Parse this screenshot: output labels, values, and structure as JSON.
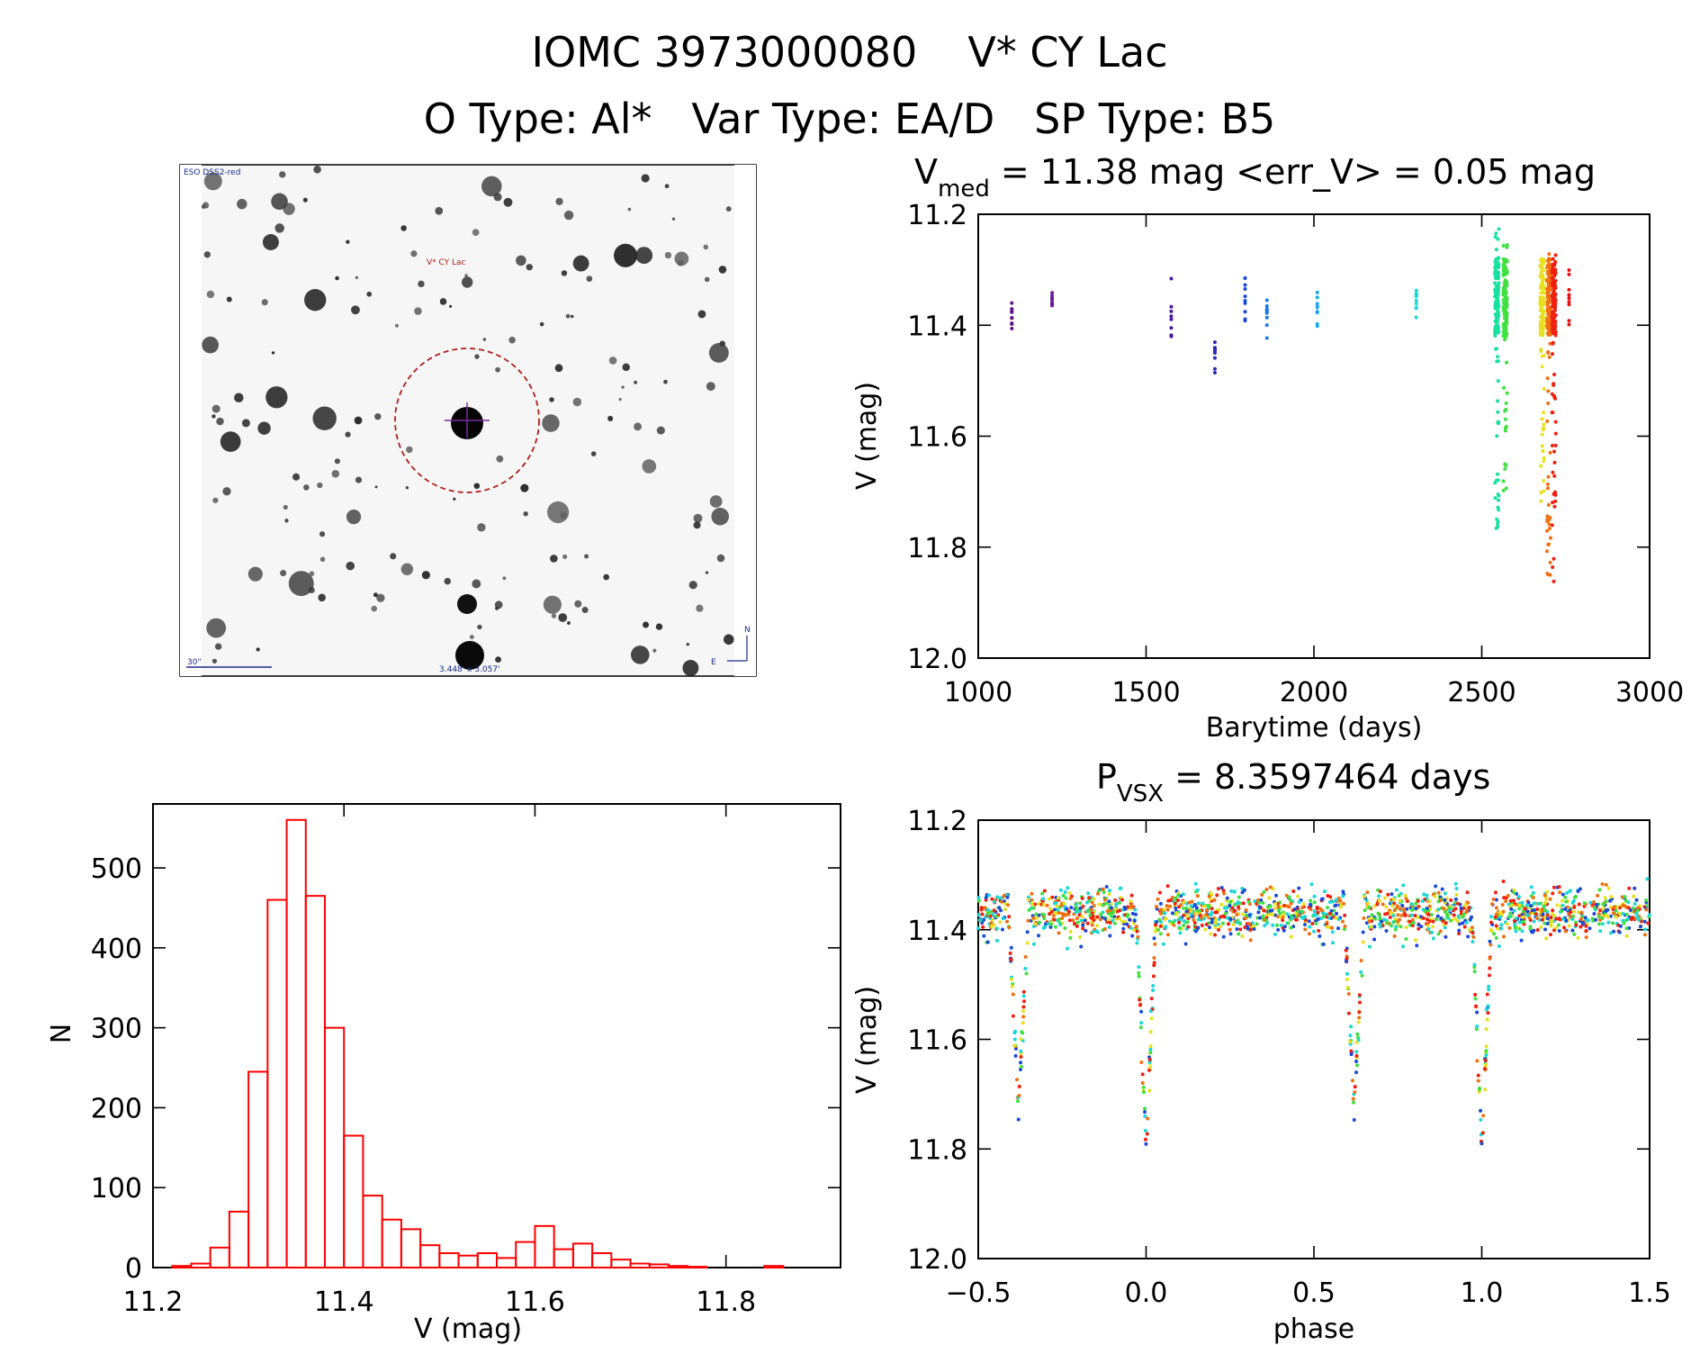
{
  "header": {
    "line1_id": "IOMC 3973000080",
    "line1_name": "V* CY Lac",
    "line2": "O Type: Al*   Var Type: EA/D   SP Type: B5"
  },
  "finder": {
    "survey_label": "ESO DSS2-red",
    "target_label": "V* CY Lac",
    "scale_label": "30\"",
    "fov_label": "3.448' x 3.057'",
    "north_label": "N",
    "east_label": "E"
  },
  "chart_data": [
    {
      "type": "scatter",
      "id": "light_curve",
      "title": "V_med = 11.38 mag <err_V> = 0.05 mag",
      "title_parts": {
        "v": "V",
        "sub": "med",
        "rest": " = 11.38 mag <err_V> = 0.05 mag"
      },
      "xlabel": "Barytime (days)",
      "ylabel": "V (mag)",
      "xlim": [
        1000,
        3000
      ],
      "ylim": [
        12.0,
        11.2
      ],
      "xticks": [
        1000,
        1500,
        2000,
        2500,
        3000
      ],
      "yticks": [
        11.2,
        11.4,
        11.6,
        11.8,
        12.0
      ],
      "groups": [
        {
          "t": 1100,
          "v": [
            11.36,
            11.38,
            11.4,
            11.41
          ],
          "color": "#5a1488"
        },
        {
          "t": 1220,
          "v": [
            11.34,
            11.35,
            11.36,
            11.37
          ],
          "color": "#6a1a9a"
        },
        {
          "t": 1575,
          "v": [
            11.3,
            11.33,
            11.36,
            11.4,
            11.43
          ],
          "color": "#4a18a0"
        },
        {
          "t": 1705,
          "v": [
            11.42,
            11.45,
            11.47,
            11.49
          ],
          "color": "#2a2ab8"
        },
        {
          "t": 1795,
          "v": [
            11.31,
            11.34,
            11.37,
            11.4
          ],
          "color": "#1a4ad8"
        },
        {
          "t": 1860,
          "v": [
            11.34,
            11.37,
            11.4,
            11.43
          ],
          "color": "#1a7ae8"
        },
        {
          "t": 2010,
          "v": [
            11.32,
            11.35,
            11.38,
            11.41
          ],
          "color": "#1aa8f0"
        },
        {
          "t": 2305,
          "v": [
            11.32,
            11.35,
            11.39
          ],
          "color": "#1ad8d8"
        },
        {
          "t": 2545,
          "v": [
            11.22,
            11.3,
            11.38,
            11.46,
            11.55,
            11.62,
            11.7,
            11.78
          ],
          "color": "#1ae0a0"
        },
        {
          "t": 2570,
          "v": [
            11.25,
            11.32,
            11.4,
            11.48,
            11.56,
            11.65,
            11.72
          ],
          "color": "#40e040"
        },
        {
          "t": 2680,
          "v": [
            11.27,
            11.34,
            11.42,
            11.52,
            11.62,
            11.72
          ],
          "color": "#e8e020"
        },
        {
          "t": 2700,
          "v": [
            11.27,
            11.36,
            11.46,
            11.58,
            11.7,
            11.86
          ],
          "color": "#f07010"
        },
        {
          "t": 2715,
          "v": [
            11.26,
            11.35,
            11.45,
            11.55,
            11.68,
            11.79,
            11.88
          ],
          "color": "#f02010"
        },
        {
          "t": 2760,
          "v": [
            11.28,
            11.32,
            11.37,
            11.41
          ],
          "color": "#e81010"
        }
      ]
    },
    {
      "type": "bar",
      "id": "histogram",
      "title": "",
      "xlabel": "V (mag)",
      "ylabel": "N",
      "xlim": [
        11.2,
        11.92
      ],
      "ylim": [
        0,
        580
      ],
      "xticks": [
        11.2,
        11.4,
        11.6,
        11.8
      ],
      "yticks": [
        0,
        100,
        200,
        300,
        400,
        500
      ],
      "bin_start": 11.22,
      "bin_width": 0.02,
      "counts": [
        2,
        5,
        25,
        70,
        245,
        460,
        560,
        465,
        300,
        165,
        90,
        60,
        48,
        28,
        18,
        15,
        18,
        12,
        32,
        52,
        23,
        30,
        18,
        10,
        5,
        4,
        2,
        1,
        0,
        0,
        0,
        2,
        0,
        0
      ],
      "color": "#ff0000"
    },
    {
      "type": "scatter",
      "id": "phase_curve",
      "title": "P_vsx = 8.3597464 days",
      "title_parts": {
        "v": "P",
        "sub": "VSX",
        "rest": " = 8.3597464 days"
      },
      "xlabel": "phase",
      "ylabel": "V (mag)",
      "xlim": [
        -0.5,
        1.5
      ],
      "ylim": [
        12.0,
        11.2
      ],
      "xticks": [
        -0.5,
        0.0,
        0.5,
        1.0,
        1.5
      ],
      "xtick_labels": [
        "−0.5",
        "0.0",
        "0.5",
        "1.0",
        "1.5"
      ],
      "yticks": [
        11.2,
        11.4,
        11.6,
        11.8,
        12.0
      ],
      "baseline_mag": 11.37,
      "primary_eclipse": {
        "phase": 0.0,
        "depth_mag": 11.8,
        "width": 0.03
      },
      "secondary_eclipse": {
        "phase": -0.38,
        "depth_mag": 11.72,
        "width": 0.03
      },
      "palette": [
        "#1a4ad8",
        "#1ad8d8",
        "#40e040",
        "#e8e020",
        "#f07010",
        "#f02010"
      ]
    }
  ]
}
